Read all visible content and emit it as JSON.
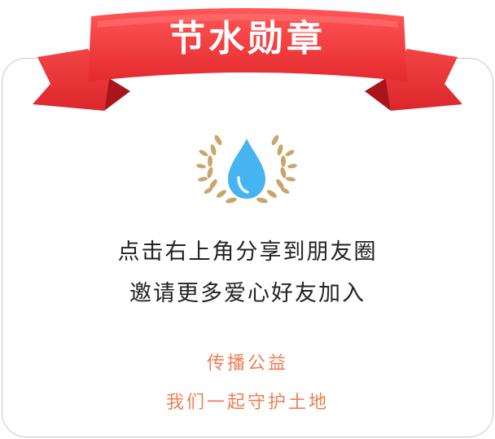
{
  "badge": {
    "title": "节水勋章",
    "ribbon_color": "#f23a3a",
    "ribbon_dark": "#c81e24",
    "emblem_icon": "water-drop-laurel-icon",
    "drop_color": "#46b4f0",
    "laurel_color": "#c9a56a"
  },
  "message": {
    "line1": "点击右上角分享到朋友圈",
    "line2": "邀请更多爱心好友加入"
  },
  "slogan": {
    "line1": "传播公益",
    "line2": "我们一起守护土地",
    "color": "#ef7e54"
  }
}
